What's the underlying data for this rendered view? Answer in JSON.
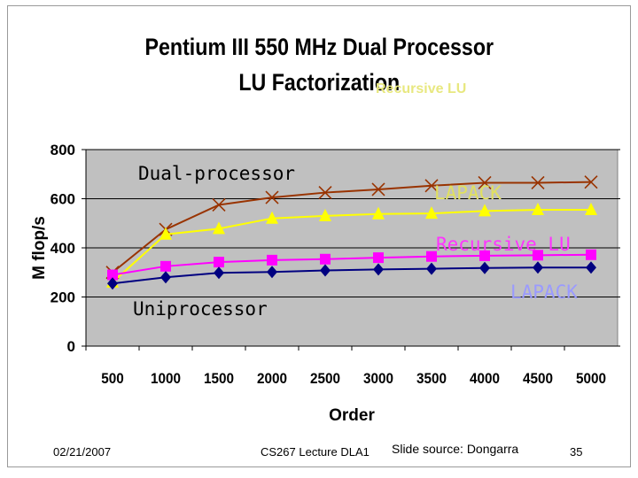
{
  "slide": {
    "footer_date": "02/21/2007",
    "footer_lecture": "CS267 Lecture DLA1",
    "footer_source": "Slide source: Dongarra",
    "page_number": "35",
    "background": "#ffffff"
  },
  "annotations": {
    "dual": "Dual-processor",
    "uni": "Uniprocessor",
    "lapack_top": "LAPACK",
    "recursive_lu": "Recursive LU",
    "lapack_bottom": "LAPACK",
    "title_overlay": "Recursive LU"
  },
  "chart_data": {
    "type": "line",
    "title": "Pentium III 550 MHz Dual Processor",
    "subtitle": "LU Factorization",
    "xlabel": "Order",
    "ylabel": "M flop/s",
    "categories": [
      "500",
      "1000",
      "1500",
      "2000",
      "2500",
      "3000",
      "3500",
      "4000",
      "4500",
      "5000"
    ],
    "ylim": [
      0,
      800
    ],
    "yticks": [
      "0",
      "200",
      "400",
      "600",
      "800"
    ],
    "grid": true,
    "plot_background": "#c0c0c0",
    "series": [
      {
        "color": "#993300",
        "marker": "x",
        "values": [
          300,
          475,
          575,
          605,
          625,
          638,
          653,
          665,
          665,
          668
        ]
      },
      {
        "color": "#ffff00",
        "marker": "triangle",
        "values": [
          260,
          455,
          478,
          520,
          530,
          538,
          540,
          550,
          555,
          555
        ]
      },
      {
        "color": "#ff00ff",
        "marker": "square",
        "values": [
          290,
          325,
          342,
          350,
          354,
          360,
          365,
          368,
          370,
          372
        ]
      },
      {
        "color": "#000080",
        "marker": "diamond",
        "values": [
          255,
          280,
          298,
          302,
          308,
          312,
          315,
          318,
          320,
          320
        ]
      }
    ]
  }
}
